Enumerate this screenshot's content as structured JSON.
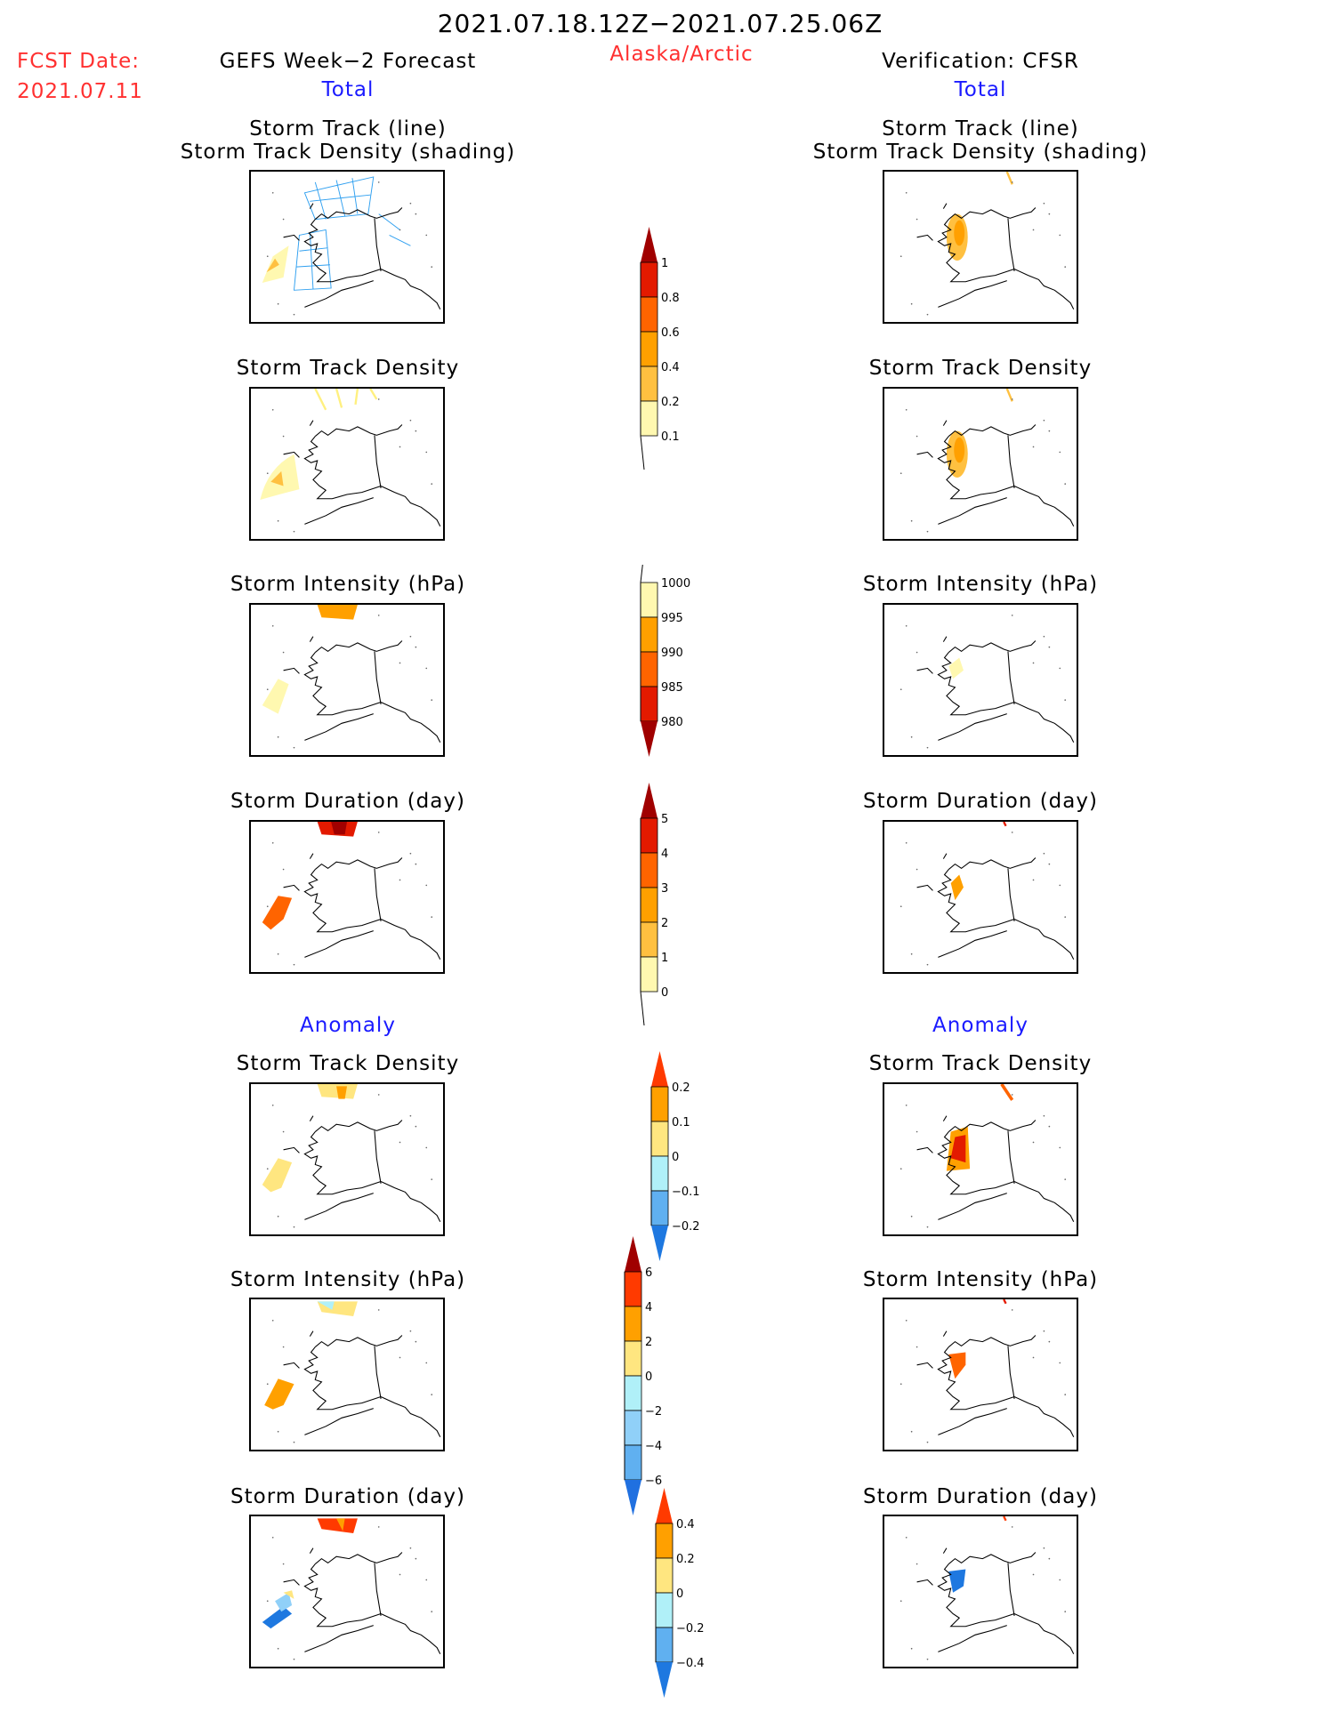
{
  "header": {
    "period": "2021.07.18.12Z−2021.07.25.06Z",
    "fcst_label": "FCST Date:",
    "fcst_date": "2021.07.11",
    "region": "Alaska/Arctic",
    "left_title": "GEFS Week−2 Forecast",
    "right_title": "Verification: CFSR",
    "total": "Total",
    "anomaly": "Anomaly"
  },
  "panels": {
    "track_line": "Storm Track (line)",
    "track_shading": "Storm Track Density (shading)",
    "density": "Storm Track Density",
    "intensity": "Storm Intensity (hPa)",
    "duration": "Storm Duration (day)"
  },
  "chart_data": [
    {
      "type": "colorbar",
      "name": "track-density",
      "ticks": [
        "1",
        "0.8",
        "0.6",
        "0.4",
        "0.2",
        "0.1"
      ],
      "colors": [
        "#e31a00",
        "#ff6400",
        "#ffa000",
        "#ffc040",
        "#fff8b0"
      ],
      "top_arrow": "#a00000",
      "bottom_arrow": null
    },
    {
      "type": "colorbar",
      "name": "intensity",
      "ticks": [
        "1000",
        "995",
        "990",
        "985",
        "980"
      ],
      "colors": [
        "#fff8b0",
        "#ffa000",
        "#ff6400",
        "#e31a00"
      ],
      "top_arrow": null,
      "bottom_arrow": "#a00000"
    },
    {
      "type": "colorbar",
      "name": "duration",
      "ticks": [
        "5",
        "4",
        "3",
        "2",
        "1",
        "0"
      ],
      "colors": [
        "#e31a00",
        "#ff6400",
        "#ffa000",
        "#ffc040",
        "#fff8b0"
      ],
      "top_arrow": "#a00000",
      "bottom_arrow": null
    },
    {
      "type": "colorbar",
      "name": "density-anomaly",
      "ticks": [
        "0.2",
        "0.1",
        "0",
        "−0.1",
        "−0.2"
      ],
      "colors": [
        "#ffa000",
        "#ffe680",
        "#b0f0f8",
        "#60b0f0"
      ],
      "top_arrow": "#ff3a00",
      "bottom_arrow": "#1e78e0"
    },
    {
      "type": "colorbar",
      "name": "intensity-anomaly",
      "ticks": [
        "6",
        "4",
        "2",
        "0",
        "−2",
        "−4",
        "−6"
      ],
      "colors": [
        "#ff3a00",
        "#ffa000",
        "#ffe680",
        "#b0f0f8",
        "#90d0f8",
        "#60b0f0"
      ],
      "top_arrow": "#a00000",
      "bottom_arrow": "#2070e0"
    },
    {
      "type": "colorbar",
      "name": "duration-anomaly",
      "ticks": [
        "0.4",
        "0.2",
        "0",
        "−0.2",
        "−0.4"
      ],
      "colors": [
        "#ffa000",
        "#ffe680",
        "#b0f0f8",
        "#60b0f0"
      ],
      "top_arrow": "#ff3a00",
      "bottom_arrow": "#1e78e0"
    }
  ]
}
